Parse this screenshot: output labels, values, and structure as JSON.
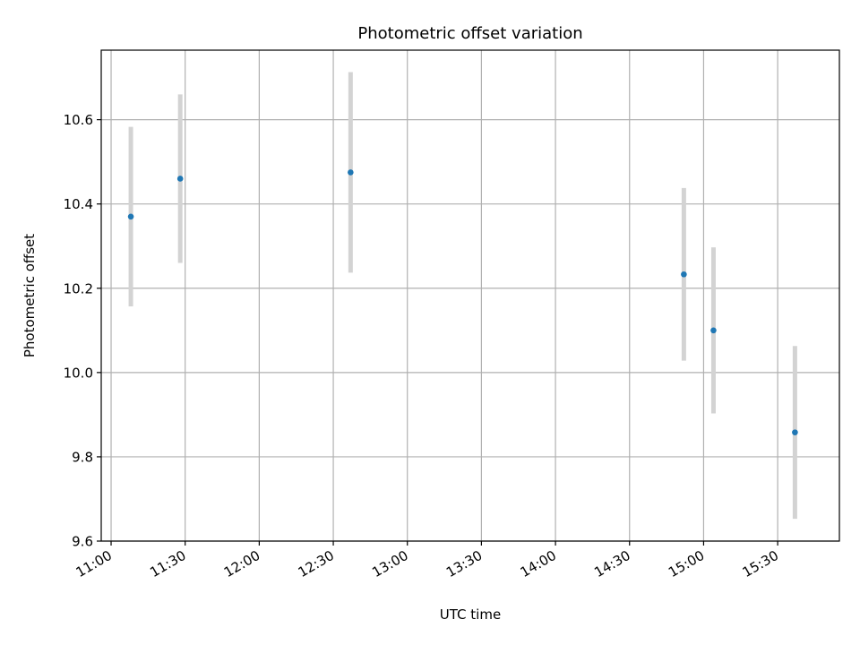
{
  "chart_data": {
    "type": "scatter",
    "title": "Photometric offset variation",
    "xlabel": "UTC time",
    "ylabel": "Photometric offset",
    "x_ticks": [
      "11:00",
      "11:30",
      "12:00",
      "12:30",
      "13:00",
      "13:30",
      "14:00",
      "14:30",
      "15:00",
      "15:30"
    ],
    "y_ticks": [
      "9.6",
      "9.8",
      "10.0",
      "10.2",
      "10.4",
      "10.6"
    ],
    "xlim": [
      "10:56",
      "15:55"
    ],
    "ylim": [
      9.6,
      10.765
    ],
    "grid": true,
    "colors": {
      "point": "#1f77b4",
      "errorbar": "#d3d3d3"
    },
    "points": [
      {
        "x": "11:08",
        "y": 10.37,
        "yerr": 0.213
      },
      {
        "x": "11:28",
        "y": 10.46,
        "yerr": 0.2
      },
      {
        "x": "12:37",
        "y": 10.475,
        "yerr": 0.238
      },
      {
        "x": "14:52",
        "y": 10.233,
        "yerr": 0.205
      },
      {
        "x": "15:04",
        "y": 10.1,
        "yerr": 0.197
      },
      {
        "x": "15:37",
        "y": 9.858,
        "yerr": 0.205
      }
    ]
  }
}
